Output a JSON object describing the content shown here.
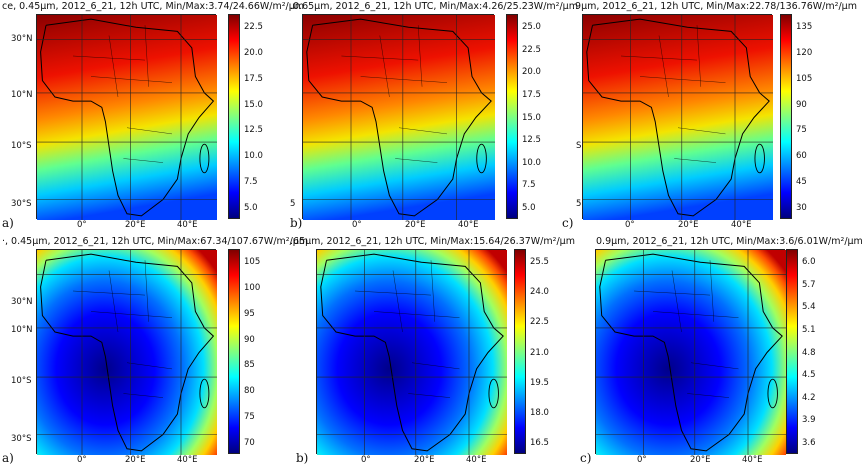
{
  "colormap": "jet",
  "border_color": "#000000",
  "grid_color": "#222222",
  "panels": [
    {
      "label": "a)",
      "title": "ce, 0.45μm, 2012_6_21, 12h UTC, Min/Max:3.74/24.66W/m²/μm",
      "map": {
        "type": "map",
        "pattern": "bright-north",
        "region": "Africa",
        "shown": true
      },
      "yticks": [
        "30°N",
        "10°N",
        "10°S",
        "30°S"
      ],
      "xticks": [
        "0°",
        "20°E",
        "40°E"
      ],
      "cbar_ticks": [
        "22.5",
        "20.0",
        "17.5",
        "15.0",
        "12.5",
        "10.0",
        "7.5",
        "5.0"
      ]
    },
    {
      "label": "b)",
      "title": ".0.65μm, 2012_6_21, 12h UTC, Min/Max:4.26/25.23W/m²/μm",
      "map": {
        "type": "map",
        "pattern": "bright-north",
        "region": "Africa",
        "shown": true
      },
      "yticks": [
        "",
        "",
        "",
        "5"
      ],
      "xticks": [
        "0°",
        "20°E",
        "40°E"
      ],
      "cbar_ticks": [
        "25.0",
        "22.5",
        "20.0",
        "17.5",
        "15.0",
        "12.5",
        "10.0",
        "7.5",
        "5.0"
      ]
    },
    {
      "label": "c)",
      "title": ".9μm, 2012_6_21, 12h UTC, Min/Max:22.78/136.76W/m²/μm",
      "map": {
        "type": "map",
        "pattern": "bright-north",
        "region": "Africa",
        "shown": true
      },
      "yticks": [
        "",
        "",
        "S",
        "5"
      ],
      "xticks": [
        "0°",
        "20°E",
        "40°E"
      ],
      "cbar_ticks": [
        "135",
        "120",
        "105",
        "90",
        "75",
        "60",
        "45",
        "30"
      ]
    },
    {
      "label": "a)",
      "title": "·, 0.45μm, 2012_6_21, 12h UTC, Min/Max:67.34/107.67W/m²/μm",
      "map": {
        "type": "map",
        "pattern": "dark-center",
        "region": "Africa",
        "shown": true
      },
      "yticks": [
        "30°N",
        "10°N",
        "10°S",
        "30°S"
      ],
      "xticks": [
        "0°",
        "20°E",
        "40°E"
      ],
      "cbar_ticks": [
        "105",
        "100",
        "95",
        "90",
        "85",
        "80",
        "75",
        "70"
      ]
    },
    {
      "label": "b)",
      "title": ".65μm, 2012_6_21, 12h UTC, Min/Max:15.64/26.37W/m²/μm",
      "map": {
        "type": "map",
        "pattern": "dark-center",
        "region": "Africa",
        "shown": true
      },
      "yticks": [
        "",
        "",
        "",
        ""
      ],
      "xticks": [
        "0°",
        "20°E",
        "40°E"
      ],
      "cbar_ticks": [
        "25.5",
        "24.0",
        "22.5",
        "21.0",
        "19.5",
        "18.0",
        "16.5"
      ]
    },
    {
      "label": "c)",
      "title": "0.9μm, 2012_6_21, 12h UTC, Min/Max:3.6/6.01W/m²/μm",
      "map": {
        "type": "map",
        "pattern": "dark-center",
        "region": "Africa",
        "shown": true
      },
      "yticks": [
        "",
        "",
        "",
        ""
      ],
      "xticks": [
        "0°",
        "20°E",
        "40°E"
      ],
      "cbar_ticks": [
        "6.0",
        "5.7",
        "5.4",
        "5.1",
        "4.8",
        "4.5",
        "4.2",
        "3.9",
        "3.6"
      ]
    }
  ]
}
